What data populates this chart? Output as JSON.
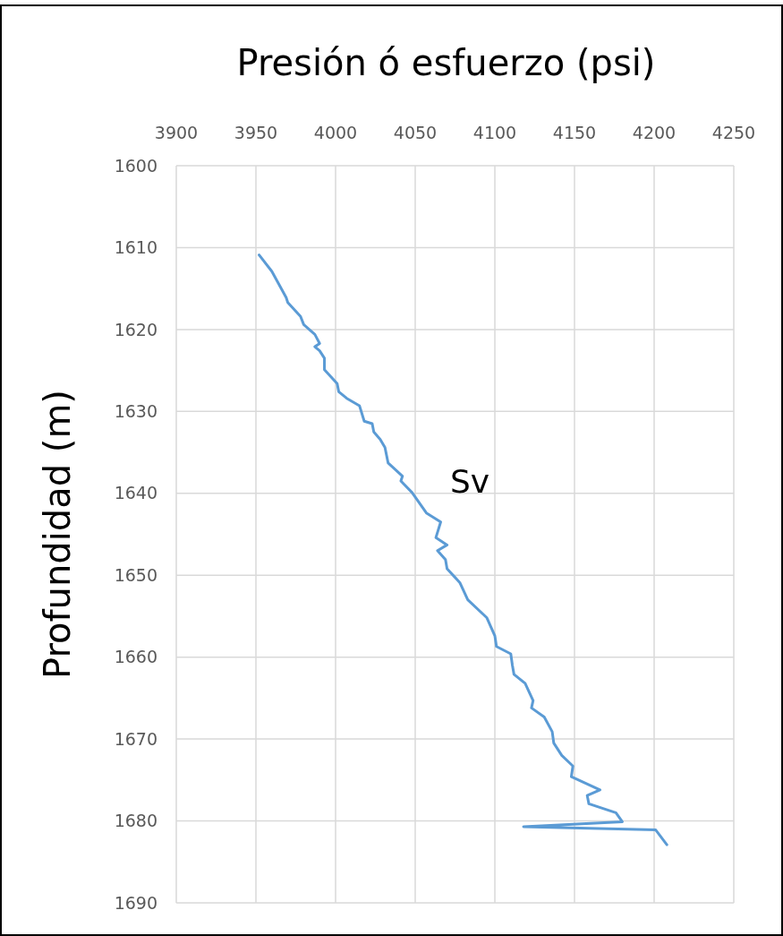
{
  "chart_data": {
    "type": "line",
    "xlabel": "Presión ó esfuerzo (psi)",
    "ylabel": "Profundidad (m)",
    "xlim": [
      3900,
      4250
    ],
    "xticks": [
      3900,
      3950,
      4000,
      4050,
      4100,
      4150,
      4200,
      4250
    ],
    "ylim": [
      1690,
      1600
    ],
    "yticks": [
      1600,
      1610,
      1620,
      1630,
      1640,
      1650,
      1660,
      1670,
      1680,
      1690
    ],
    "grid": true,
    "marker": "none",
    "line_style": "solid",
    "series": [
      {
        "name": "Sv",
        "color": "#5b9bd5",
        "x": [
          3952,
          3960,
          3969,
          3970,
          3978,
          3980,
          3987,
          3990,
          3987,
          3990,
          3993,
          3993,
          4001,
          4002,
          4007,
          4015,
          4018,
          4023,
          4024,
          4028,
          4031,
          4033,
          4042,
          4041,
          4048,
          4057,
          4066,
          4063,
          4070,
          4064,
          4069,
          4070,
          4078,
          4083,
          4095,
          4100,
          4101,
          4110,
          4111,
          4112,
          4119,
          4124,
          4123,
          4131,
          4136,
          4137,
          4142,
          4149,
          4148,
          4166,
          4158,
          4159,
          4176,
          4180,
          4118,
          4201,
          4208
        ],
        "values": [
          1610.9,
          1612.9,
          1616.1,
          1616.7,
          1618.4,
          1619.4,
          1620.6,
          1621.7,
          1622.1,
          1622.6,
          1623.5,
          1624.9,
          1626.6,
          1627.6,
          1628.4,
          1629.3,
          1631.2,
          1631.5,
          1632.5,
          1633.4,
          1634.4,
          1636.3,
          1637.9,
          1638.5,
          1639.9,
          1642.4,
          1643.5,
          1645.4,
          1646.3,
          1647.0,
          1648.1,
          1649.2,
          1650.9,
          1653.0,
          1655.2,
          1657.4,
          1658.7,
          1659.6,
          1661.0,
          1662.1,
          1663.2,
          1665.3,
          1666.2,
          1667.3,
          1669.1,
          1670.5,
          1672.0,
          1673.3,
          1674.6,
          1676.2,
          1676.9,
          1677.9,
          1679.0,
          1680.1,
          1680.7,
          1681.1,
          1682.9
        ]
      }
    ]
  }
}
